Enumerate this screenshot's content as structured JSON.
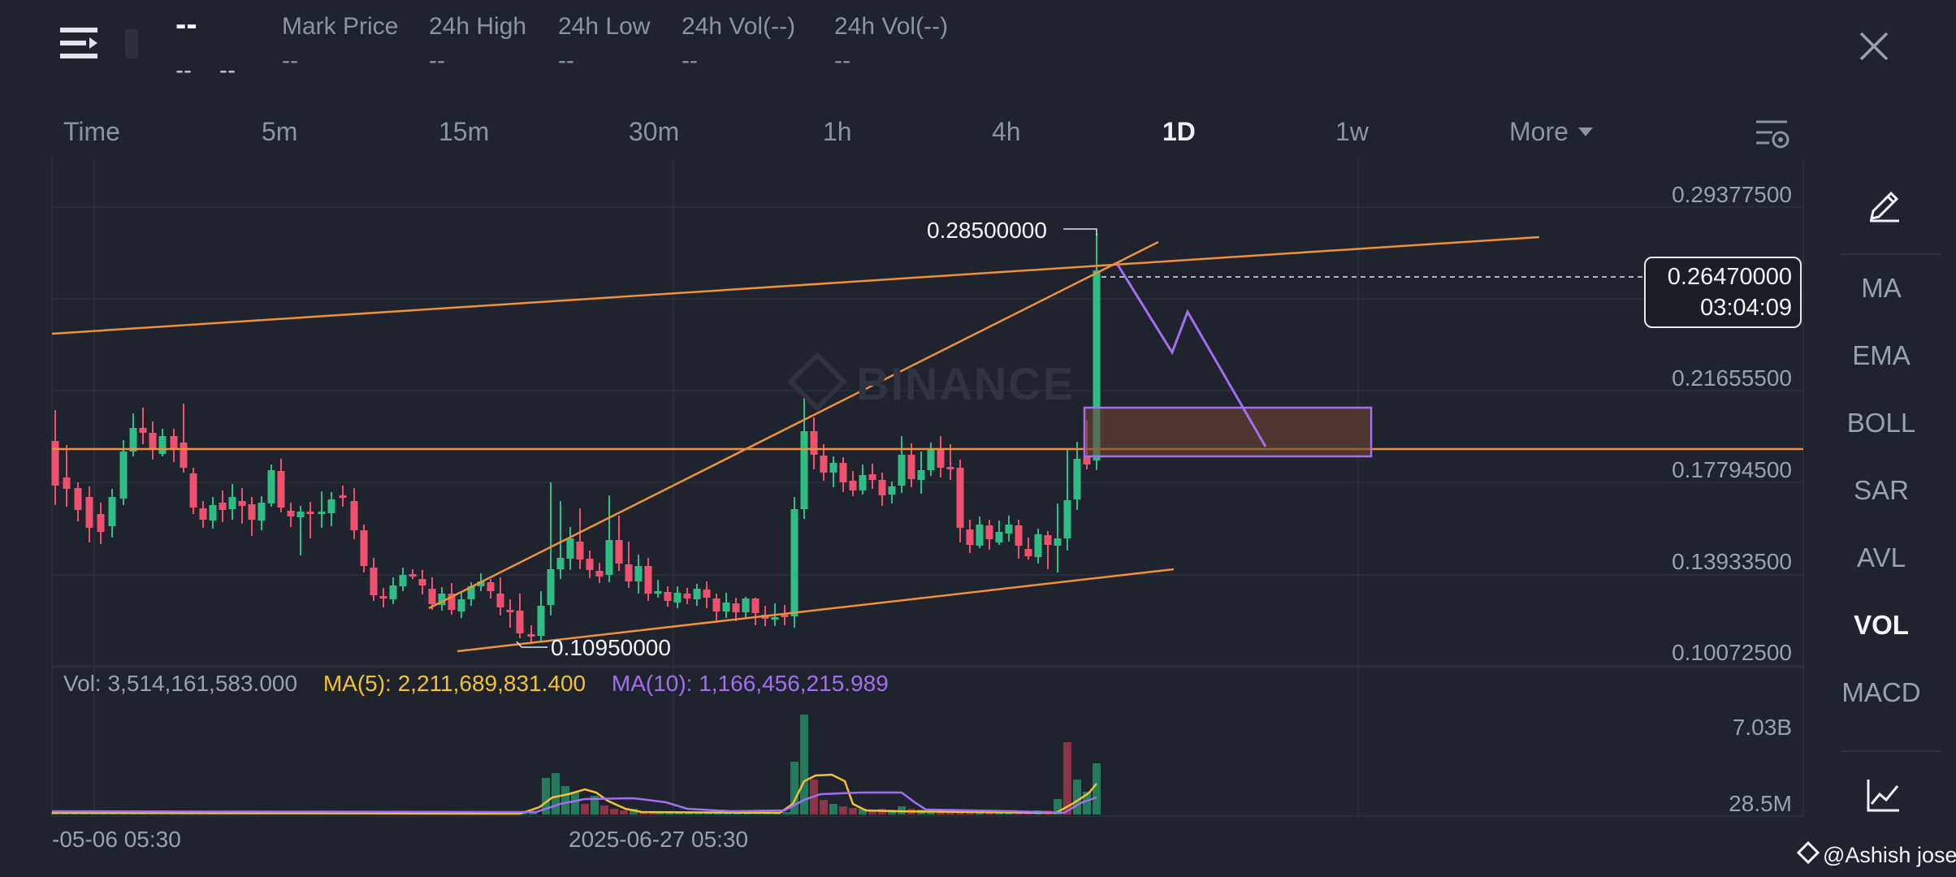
{
  "header": {
    "symbol": "--",
    "change_a": "--",
    "change_b": "--",
    "stats": [
      {
        "label": "Mark Price",
        "value": "--"
      },
      {
        "label": "24h High",
        "value": "--"
      },
      {
        "label": "24h Low",
        "value": "--"
      },
      {
        "label": "24h Vol(--)",
        "value": "--"
      },
      {
        "label": "24h Vol(--)",
        "value": "--"
      }
    ],
    "close_icon": "close-icon",
    "menu_icon": "menu-icon"
  },
  "timeframes": [
    "Time",
    "5m",
    "15m",
    "30m",
    "1h",
    "4h",
    "1D",
    "1w",
    "More"
  ],
  "active_timeframe": "1D",
  "sidebar": {
    "items": [
      "MA",
      "EMA",
      "BOLL",
      "SAR",
      "AVL",
      "VOL",
      "MACD"
    ],
    "active": "VOL"
  },
  "price_axis": [
    "0.29377500",
    "0.21655500",
    "0.17794500",
    "0.13933500",
    "0.10072500"
  ],
  "current_price": {
    "price": "0.26470000",
    "countdown": "03:04:09"
  },
  "annotations": {
    "high": "0.28500000",
    "low": "0.10950000"
  },
  "watermark": "BINANCE",
  "volume": {
    "vol": "Vol: 3,514,161,583.000",
    "ma5": "MA(5): 2,211,689,831.400",
    "ma10": "MA(10): 1,166,456,215.989",
    "axis_top": "7.03B",
    "axis_bottom": "28.5M"
  },
  "dates": [
    "-05-06 05:30",
    "2025-06-27 05:30"
  ],
  "credit": "@Ashish jose",
  "colors": {
    "up": "#2fbd85",
    "down": "#f0506e",
    "trend": "#f0913a",
    "projection": "#a46ef0",
    "ma5": "#f2c230",
    "ma10": "#a46ef0"
  }
}
